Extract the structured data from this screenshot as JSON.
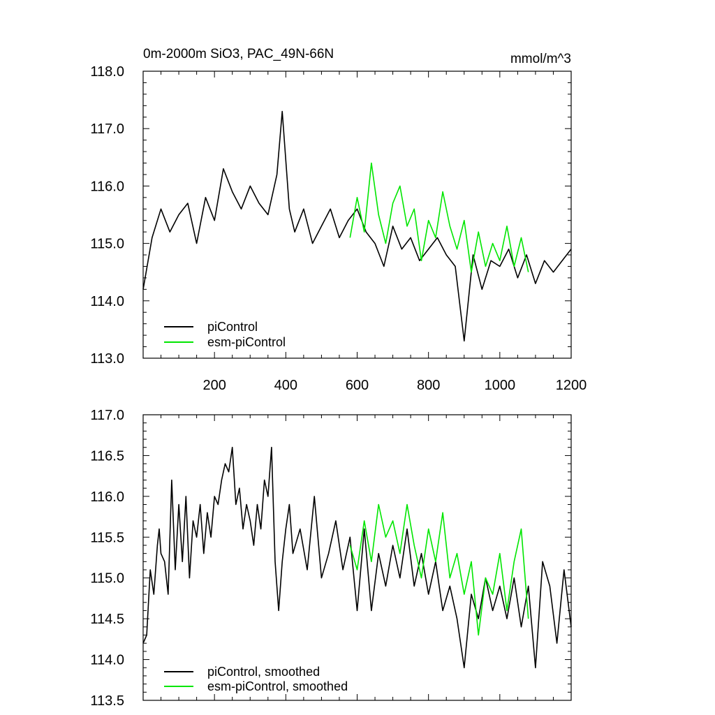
{
  "colors": {
    "piControl": "#000000",
    "esm_piControl": "#00e600"
  },
  "chart_data": [
    {
      "type": "line",
      "title_left": "0m-2000m SiO3, PAC_49N-66N",
      "title_right": "mmol/m^3",
      "xlabel": "",
      "ylabel": "",
      "xlim": [
        0,
        1200
      ],
      "ylim": [
        113.0,
        118.0
      ],
      "x_ticks": [
        200,
        400,
        600,
        800,
        1000,
        1200
      ],
      "x_tick_labels": [
        "200",
        "400",
        "600",
        "800",
        "1000",
        "1200"
      ],
      "y_ticks": [
        113.0,
        114.0,
        115.0,
        116.0,
        117.0,
        118.0
      ],
      "y_tick_labels": [
        "113.0",
        "114.0",
        "115.0",
        "116.0",
        "117.0",
        "118.0"
      ],
      "legend": [
        "piControl",
        "esm-piControl"
      ],
      "series": [
        {
          "name": "piControl",
          "x": [
            0,
            25,
            50,
            75,
            100,
            125,
            150,
            175,
            200,
            225,
            250,
            275,
            300,
            325,
            350,
            375,
            390,
            410,
            425,
            450,
            475,
            500,
            525,
            550,
            575,
            600,
            625,
            650,
            675,
            700,
            725,
            750,
            775,
            800,
            825,
            850,
            875,
            900,
            925,
            950,
            975,
            1000,
            1025,
            1050,
            1075,
            1100,
            1125,
            1150,
            1175,
            1200
          ],
          "values": [
            114.2,
            115.1,
            115.6,
            115.2,
            115.5,
            115.7,
            115.0,
            115.8,
            115.4,
            116.3,
            115.9,
            115.6,
            116.0,
            115.7,
            115.5,
            116.2,
            117.3,
            115.6,
            115.2,
            115.6,
            115.0,
            115.3,
            115.6,
            115.1,
            115.4,
            115.6,
            115.2,
            115.0,
            114.6,
            115.3,
            114.9,
            115.1,
            114.7,
            114.9,
            115.1,
            114.8,
            114.6,
            113.3,
            114.8,
            114.2,
            114.7,
            114.6,
            114.9,
            114.4,
            114.8,
            114.3,
            114.7,
            114.5,
            114.7,
            114.9
          ]
        },
        {
          "name": "esm-piControl",
          "x": [
            580,
            600,
            620,
            640,
            660,
            680,
            700,
            720,
            740,
            760,
            780,
            800,
            820,
            840,
            860,
            880,
            900,
            920,
            940,
            960,
            980,
            1000,
            1020,
            1040,
            1060,
            1080
          ],
          "values": [
            115.1,
            115.8,
            115.2,
            116.4,
            115.5,
            115.0,
            115.7,
            116.0,
            115.3,
            115.6,
            114.7,
            115.4,
            115.1,
            115.9,
            115.3,
            114.9,
            115.4,
            114.5,
            115.2,
            114.6,
            115.0,
            114.7,
            115.3,
            114.6,
            115.1,
            114.5
          ]
        }
      ]
    },
    {
      "type": "line",
      "title_left": "",
      "title_right": "",
      "xlabel": "",
      "ylabel": "",
      "xlim": [
        0,
        1200
      ],
      "ylim": [
        113.5,
        117.0
      ],
      "y_ticks": [
        113.5,
        114.0,
        114.5,
        115.0,
        115.5,
        116.0,
        116.5,
        117.0
      ],
      "y_tick_labels": [
        "113.5",
        "114.0",
        "114.5",
        "115.0",
        "115.5",
        "116.0",
        "116.5",
        "117.0"
      ],
      "legend": [
        "piControl, smoothed",
        "esm-piControl, smoothed"
      ],
      "series": [
        {
          "name": "piControl, smoothed",
          "x": [
            0,
            10,
            20,
            30,
            40,
            45,
            50,
            60,
            70,
            80,
            90,
            100,
            110,
            120,
            130,
            140,
            150,
            160,
            170,
            180,
            190,
            200,
            210,
            220,
            230,
            240,
            250,
            260,
            270,
            280,
            290,
            300,
            310,
            320,
            330,
            340,
            350,
            360,
            370,
            380,
            390,
            400,
            410,
            420,
            440,
            460,
            480,
            500,
            520,
            540,
            560,
            580,
            600,
            620,
            640,
            660,
            680,
            700,
            720,
            740,
            760,
            780,
            800,
            820,
            840,
            860,
            880,
            900,
            920,
            940,
            960,
            980,
            1000,
            1020,
            1040,
            1060,
            1080,
            1100,
            1120,
            1140,
            1160,
            1180,
            1200
          ],
          "values": [
            114.2,
            114.3,
            115.1,
            114.8,
            115.4,
            115.6,
            115.3,
            115.2,
            114.8,
            116.2,
            115.1,
            115.9,
            115.2,
            116.0,
            115.0,
            115.7,
            115.5,
            115.9,
            115.3,
            115.8,
            115.5,
            116.0,
            115.9,
            116.2,
            116.4,
            116.3,
            116.6,
            115.9,
            116.1,
            115.6,
            115.9,
            115.7,
            115.4,
            115.9,
            115.6,
            116.2,
            116.0,
            116.6,
            115.2,
            114.6,
            115.2,
            115.6,
            115.9,
            115.3,
            115.6,
            115.1,
            116.0,
            115.0,
            115.3,
            115.7,
            115.1,
            115.5,
            114.6,
            115.6,
            114.6,
            115.3,
            114.9,
            115.4,
            115.0,
            115.6,
            114.9,
            115.3,
            114.8,
            115.2,
            114.6,
            114.9,
            114.5,
            113.9,
            114.8,
            114.5,
            115.0,
            114.6,
            114.9,
            114.5,
            115.0,
            114.4,
            114.9,
            113.9,
            115.2,
            114.9,
            114.2,
            115.1,
            114.4
          ]
        },
        {
          "name": "esm-piControl, smoothed",
          "x": [
            580,
            600,
            620,
            640,
            660,
            680,
            700,
            720,
            740,
            760,
            780,
            800,
            820,
            840,
            860,
            880,
            900,
            920,
            940,
            960,
            980,
            1000,
            1020,
            1040,
            1060,
            1080
          ],
          "values": [
            115.4,
            115.1,
            115.7,
            115.2,
            115.9,
            115.5,
            115.7,
            115.3,
            115.9,
            115.4,
            115.0,
            115.6,
            115.2,
            115.8,
            115.0,
            115.3,
            114.8,
            115.2,
            114.3,
            115.0,
            114.8,
            115.3,
            114.6,
            115.2,
            115.6,
            114.5
          ]
        }
      ]
    }
  ]
}
